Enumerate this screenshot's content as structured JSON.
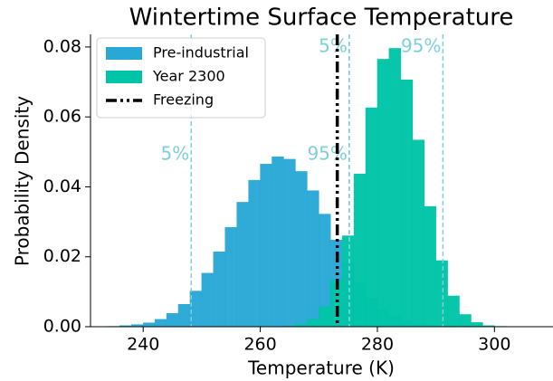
{
  "chart_data": {
    "type": "histogram",
    "title": "Wintertime Surface Temperature",
    "x_label": "Temperature (K)",
    "y_label": "Probability Density",
    "xlim": [
      231,
      310
    ],
    "xticks": [
      240,
      260,
      280,
      300
    ],
    "ylim": [
      0,
      0.0836
    ],
    "yticks": [
      {
        "value": 0,
        "label": "0.00"
      },
      {
        "value": 0.02,
        "label": "0.02"
      },
      {
        "value": 0.04,
        "label": "0.04"
      },
      {
        "value": 0.06,
        "label": "0.06"
      },
      {
        "value": 0.08,
        "label": "0.08"
      }
    ],
    "legend": "upper left",
    "series": [
      {
        "name": "Pre-industrial",
        "color": "#29a8d6",
        "bins": [
          234,
          236,
          238,
          240,
          242,
          244,
          246,
          248,
          250,
          252,
          254,
          256,
          258,
          260,
          262,
          264,
          266,
          268,
          270,
          272,
          274,
          276,
          278,
          280,
          282,
          284,
          286,
          288,
          290,
          292,
          294
        ],
        "values": [
          0.0001,
          0.0003,
          0.0006,
          0.0011,
          0.0021,
          0.0038,
          0.0064,
          0.0102,
          0.0153,
          0.0214,
          0.0284,
          0.0356,
          0.0419,
          0.0465,
          0.0486,
          0.0479,
          0.0444,
          0.0389,
          0.0322,
          0.0248,
          0.0183,
          0.0125,
          0.0082,
          0.005,
          0.0029,
          0.0016,
          0.0008,
          0.0004,
          0.0002,
          0.0001
        ],
        "percentiles": [
          {
            "value": 248.2,
            "label": "5%"
          },
          {
            "value": 275.2,
            "label": "95%"
          }
        ]
      },
      {
        "name": "Year 2300",
        "color": "#00c4a7",
        "bins": [
          264,
          266,
          268,
          270,
          272,
          274,
          276,
          278,
          280,
          282,
          284,
          286,
          288,
          290,
          292,
          294,
          296,
          298,
          300,
          302
        ],
        "values": [
          0.0002,
          0.0007,
          0.0021,
          0.0057,
          0.0132,
          0.026,
          0.0437,
          0.0626,
          0.0765,
          0.0796,
          0.0706,
          0.0534,
          0.0344,
          0.0189,
          0.0088,
          0.0035,
          0.0012,
          0.0003,
          0.0001
        ],
        "percentiles": [
          {
            "value": 275.2,
            "label": "5%"
          },
          {
            "value": 291.2,
            "label": "95%"
          }
        ]
      }
    ],
    "percentile_color": "#7ecfdc",
    "freezing": {
      "name": "Freezing",
      "value": 273.15,
      "color": "#000000"
    }
  }
}
